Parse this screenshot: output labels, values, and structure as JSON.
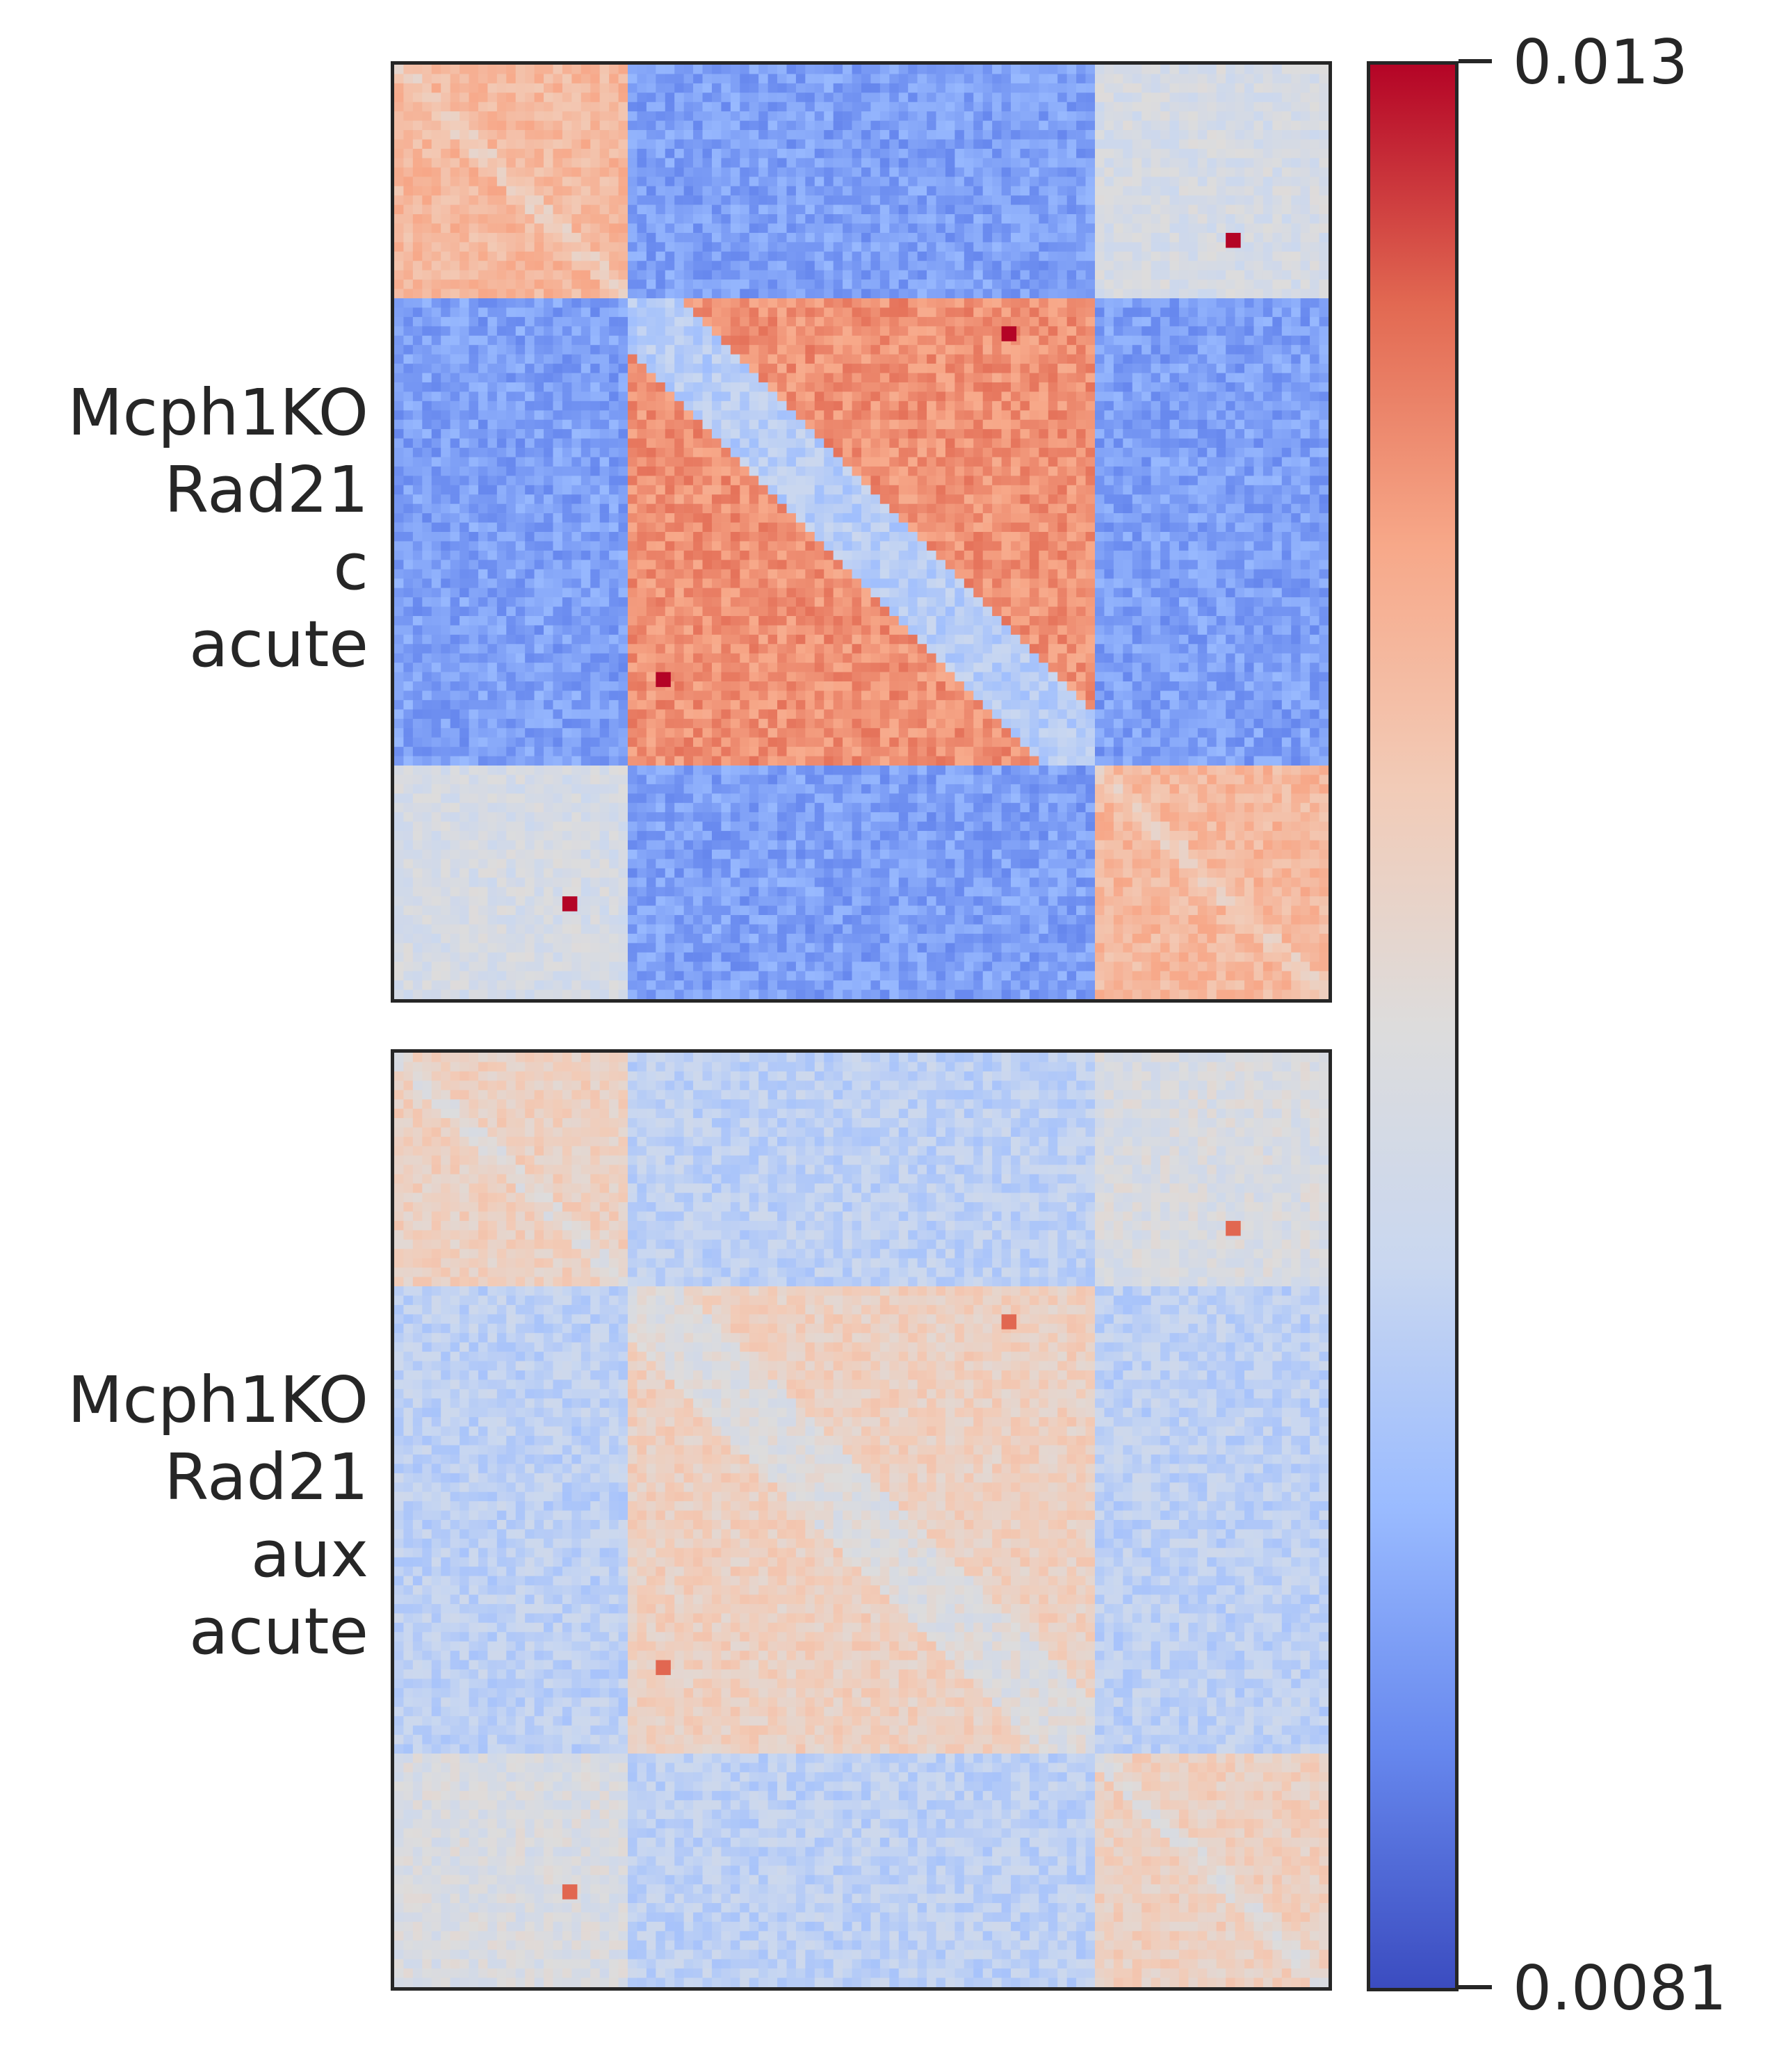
{
  "chart_data": {
    "type": "heatmap",
    "colormap": "coolwarm",
    "panels": [
      {
        "label_lines": [
          "Mcph1KO",
          "Rad21",
          "c",
          "acute"
        ],
        "grid": {
          "tad_boundaries_fraction": [
            0.0,
            0.25,
            0.75,
            1.0
          ],
          "corner_domain_value": 0.0115,
          "central_domain_value": 0.012,
          "inter_domain_value": 0.009,
          "diagonal_stripe_value": 0.0097,
          "background_value": 0.0103,
          "loop_value": 0.013
        }
      },
      {
        "label_lines": [
          "Mcph1KO",
          "Rad21",
          "aux",
          "acute"
        ],
        "grid": {
          "tad_boundaries_fraction": [
            0.0,
            0.25,
            0.75,
            1.0
          ],
          "corner_domain_value": 0.011,
          "central_domain_value": 0.011,
          "inter_domain_value": 0.0098,
          "diagonal_stripe_value": 0.0105,
          "background_value": 0.0104,
          "loop_value": 0.0124
        }
      }
    ],
    "colorbar": {
      "min": 0.0081,
      "max": 0.013,
      "min_label": "0.0081",
      "max_label": "0.013",
      "colors": [
        "#3b4cc0",
        "#6788ee",
        "#9abbff",
        "#c9d7f0",
        "#dddcdc",
        "#f2cbb7",
        "#f7a889",
        "#e26952",
        "#b40426"
      ]
    }
  }
}
